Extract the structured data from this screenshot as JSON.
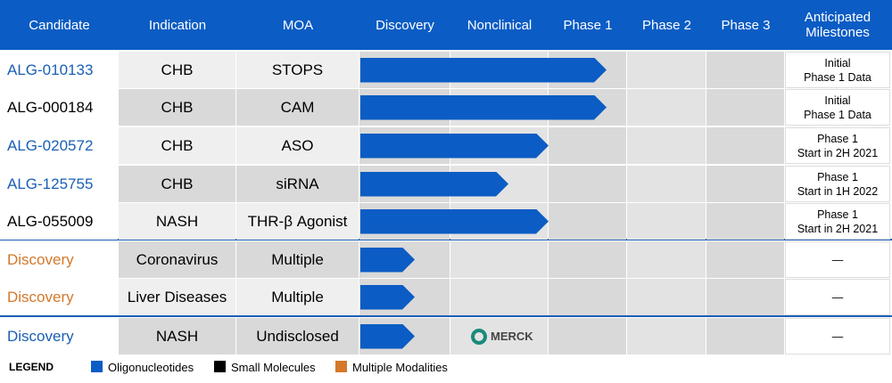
{
  "header": {
    "columns": [
      "Candidate",
      "Indication",
      "MOA",
      "Discovery",
      "Nonclinical",
      "Phase 1",
      "Phase 2",
      "Phase 3",
      "Anticipated Milestones"
    ]
  },
  "rows": [
    {
      "candidate": "ALG-010133",
      "color": "#1a5fb4",
      "indication": "CHB",
      "moa": "STOPS",
      "milestone": [
        "Initial",
        "Phase 1 Data"
      ]
    },
    {
      "candidate": "ALG-000184",
      "color": "#000000",
      "indication": "CHB",
      "moa": "CAM",
      "milestone": [
        "Initial",
        "Phase 1 Data"
      ]
    },
    {
      "candidate": "ALG-020572",
      "color": "#1a5fb4",
      "indication": "CHB",
      "moa": "ASO",
      "milestone": [
        "Phase 1",
        "Start in 2H 2021"
      ]
    },
    {
      "candidate": "ALG-125755",
      "color": "#1a5fb4",
      "indication": "CHB",
      "moa": "siRNA",
      "milestone": [
        "Phase 1",
        "Start in 1H 2022"
      ]
    },
    {
      "candidate": "ALG-055009",
      "color": "#000000",
      "indication": "NASH",
      "moa": "THR-β Agonist",
      "milestone": [
        "Phase 1",
        "Start in 2H 2021"
      ]
    },
    {
      "candidate": "Discovery",
      "color": "#d4782a",
      "indication": "Coronavirus",
      "moa": "Multiple",
      "milestone": [
        "—"
      ]
    },
    {
      "candidate": "Discovery",
      "color": "#d4782a",
      "indication": "Liver Diseases",
      "moa": "Multiple",
      "milestone": [
        "—"
      ]
    },
    {
      "candidate": "Discovery",
      "color": "#1a5fb4",
      "indication": "NASH",
      "moa": "Undisclosed",
      "milestone": [
        "—"
      ],
      "partner": "MERCK"
    }
  ],
  "legend": {
    "title": "LEGEND",
    "items": [
      {
        "label": "Oligonucleotides",
        "color": "#0b5cc4"
      },
      {
        "label": "Small Molecules",
        "color": "#000000"
      },
      {
        "label": "Multiple Modalities",
        "color": "#d4782a"
      }
    ]
  }
}
